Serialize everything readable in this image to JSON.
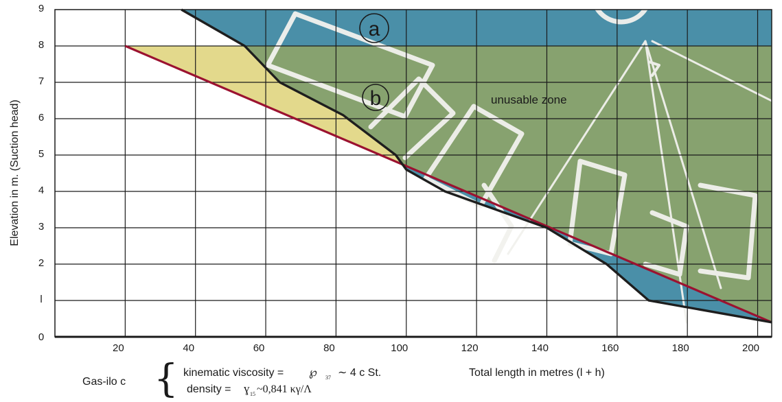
{
  "chart_data": {
    "type": "area",
    "xlabel": "Total length in metres (l + h)",
    "ylabel": "Elevation in m. (Suction head)",
    "xlim": [
      0,
      204
    ],
    "ylim": [
      0,
      9
    ],
    "x_ticks": [
      "20",
      "40",
      "60",
      "80",
      "100",
      "120",
      "140",
      "160",
      "180",
      "200"
    ],
    "y_ticks": [
      "0",
      "l",
      "2",
      "3",
      "4",
      "5",
      "6",
      "7",
      "8",
      "9"
    ],
    "grid": true,
    "boundary_curve": [
      {
        "x": 36,
        "y": 9
      },
      {
        "x": 54,
        "y": 8
      },
      {
        "x": 64,
        "y": 7
      },
      {
        "x": 82,
        "y": 6.1
      },
      {
        "x": 97,
        "y": 5
      },
      {
        "x": 100,
        "y": 4.6
      },
      {
        "x": 111,
        "y": 4
      },
      {
        "x": 140,
        "y": 3
      },
      {
        "x": 157,
        "y": 2
      },
      {
        "x": 169,
        "y": 1
      },
      {
        "x": 204,
        "y": 0.4
      }
    ],
    "reference_line": [
      {
        "x": 20,
        "y": 8
      },
      {
        "x": 204,
        "y": 0.4
      }
    ],
    "zone_a_min_elevation": 8,
    "region_labels": {
      "a": "a",
      "b": "b",
      "zone": "unusable zone"
    },
    "colors": {
      "zone_a": "#4a8fa8",
      "zone_b": "#87a26f",
      "safe_margin": "#e3d98c",
      "reference_line": "#9b1230",
      "boundary": "#1e1e1e",
      "sketch": "#f2f2ee"
    }
  },
  "notes": {
    "gas_label": "Gas-ilo c",
    "brace": "{",
    "line1_label": "kinematic viscosity =",
    "line1_symbol": "℘",
    "line1_subscript": "37",
    "line1_value": "∼ 4 c St.",
    "line2_label": "density =",
    "line2_symbol": "ɣ",
    "line2_subscript": "15",
    "line2_value": "~0,841 κγ/Λ"
  }
}
